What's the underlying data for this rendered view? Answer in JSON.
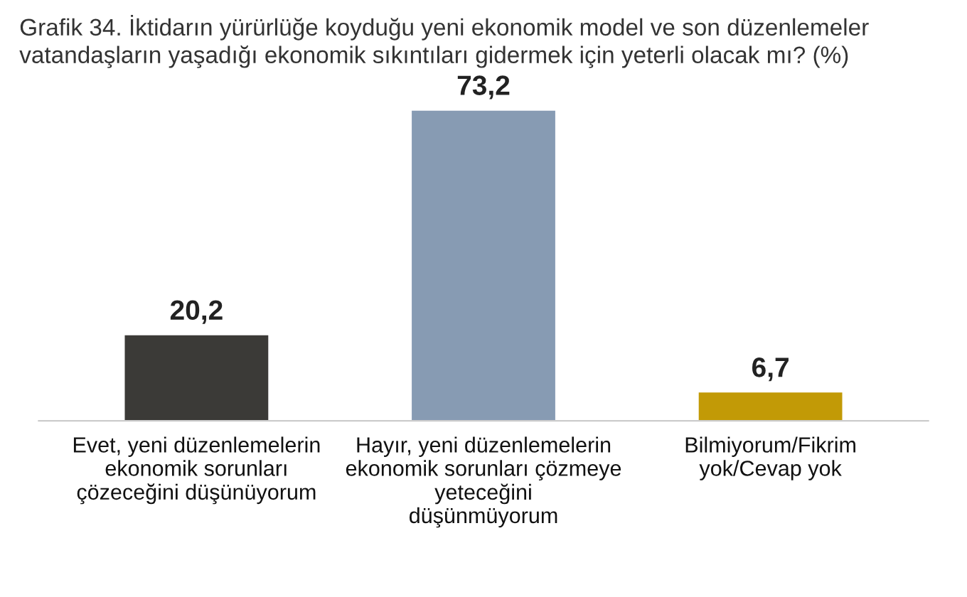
{
  "chart_data": {
    "type": "bar",
    "title": "Grafik 34. İktidarın yürürlüğe koyduğu yeni ekonomik model ve son düzenlemeler\nvatandaşların yaşadığı ekonomik sıkıntıları gidermek için yeterli olacak mı? (%)",
    "categories": [
      "Evet, yeni düzenlemelerin\nekonomik sorunları\nçözeceğini düşünüyorum",
      "Hayır, yeni düzenlemelerin\nekonomik sorunları çözmeye\nyeteceğini\ndüşünmüyorum",
      "Bilmiyorum/Fikrim\nyok/Cevap yok"
    ],
    "values": [
      20.2,
      73.2,
      6.7
    ],
    "value_labels": [
      "20,2",
      "73,2",
      "6,7"
    ],
    "colors": [
      "#3b3a37",
      "#879bb3",
      "#c29a06"
    ],
    "tick_labels": "x",
    "grid": false,
    "legend": false
  }
}
